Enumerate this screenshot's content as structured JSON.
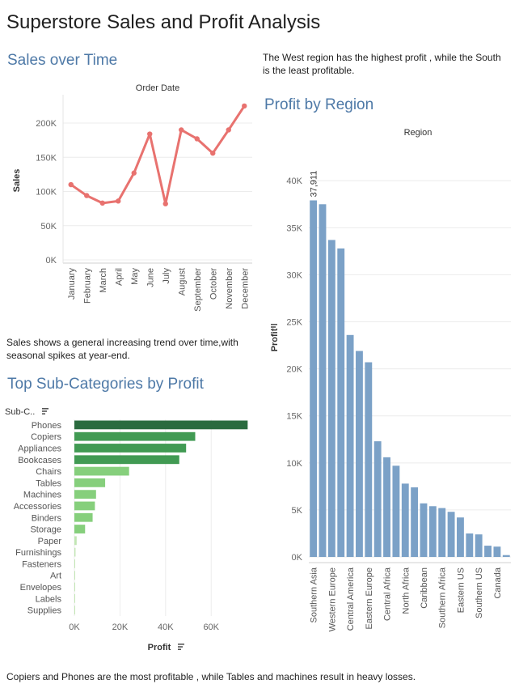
{
  "dashboard": {
    "title": "Superstore Sales and Profit Analysis",
    "region_note": "The West region has the highest profit , while the South is the least profitable.",
    "sales_note": "Sales shows a general increasing trend over time,with seasonal spikes at year-end.",
    "subcat_note": "Copiers and Phones are the most profitable , while Tables and machines result in heavy losses."
  },
  "colors": {
    "title_blue": "#4e79a7",
    "line": "#e8726f",
    "region_bar": "#7ba1c7",
    "subcat_dark": "#2a6b3f",
    "subcat_mid": "#419a53",
    "subcat_light": "#86cf7c",
    "subcat_pale": "#c2e6b4"
  },
  "chart_data": [
    {
      "id": "sales_over_time",
      "type": "line",
      "title": "Sales over Time",
      "xlabel": "Order Date",
      "ylabel": "Sales",
      "categories": [
        "January",
        "February",
        "March",
        "April",
        "May",
        "June",
        "July",
        "August",
        "September",
        "October",
        "November",
        "December"
      ],
      "values": [
        110000,
        94000,
        83000,
        86000,
        127000,
        184000,
        82000,
        190000,
        177000,
        156000,
        190000,
        225000
      ],
      "yticks": [
        0,
        50000,
        100000,
        150000,
        200000
      ],
      "ytick_labels": [
        "0K",
        "50K",
        "100K",
        "150K",
        "200K"
      ],
      "ylim": [
        0,
        232000
      ],
      "grid": true
    },
    {
      "id": "profit_by_region",
      "type": "bar",
      "title": "Profit by Region",
      "xlabel": "Region",
      "ylabel": "Profit",
      "categories": [
        "Southern Asia",
        "Western Europe",
        "Central America",
        "Eastern Europe",
        "Central Africa",
        "North Africa",
        "Caribbean",
        "Southern Africa",
        "Eastern US",
        "Southern US",
        "Canada"
      ],
      "all_values": [
        37911,
        37500,
        33700,
        32800,
        23600,
        21900,
        20700,
        12300,
        10600,
        9700,
        7800,
        7400,
        5700,
        5400,
        5200,
        4800,
        4200,
        2500,
        2400,
        1200,
        1100,
        200
      ],
      "data_labels": [
        "37,911"
      ],
      "yticks": [
        0,
        5000,
        10000,
        15000,
        20000,
        25000,
        30000,
        35000,
        40000
      ],
      "ytick_labels": [
        "0K",
        "5K",
        "10K",
        "15K",
        "20K",
        "25K",
        "30K",
        "35K",
        "40K"
      ],
      "ylim": [
        -600,
        42000
      ],
      "grid": true
    },
    {
      "id": "top_subcategories",
      "type": "bar",
      "orientation": "horizontal",
      "title": "Top Sub-Categories by Profit",
      "xlabel": "Profit",
      "ylabel": "Sub-C..",
      "categories": [
        "Phones",
        "Copiers",
        "Appliances",
        "Bookcases",
        "Chairs",
        "Tables",
        "Machines",
        "Accessories",
        "Binders",
        "Storage",
        "Paper",
        "Furnishings",
        "Fasteners",
        "Art",
        "Envelopes",
        "Labels",
        "Supplies"
      ],
      "values": [
        76000,
        53000,
        49000,
        46000,
        24000,
        13500,
        9500,
        9000,
        8000,
        4700,
        1000,
        500,
        300,
        200,
        200,
        100,
        100
      ],
      "xticks": [
        0,
        20000,
        40000,
        60000
      ],
      "xtick_labels": [
        "0K",
        "20K",
        "40K",
        "60K"
      ],
      "xlim": [
        0,
        78000
      ],
      "grid": true
    }
  ]
}
